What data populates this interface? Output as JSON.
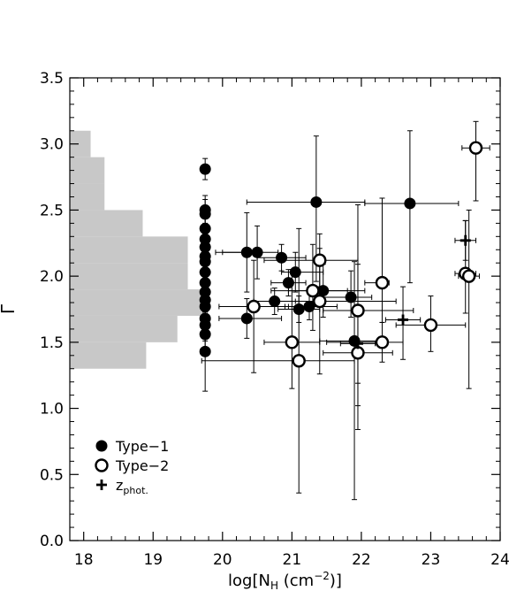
{
  "chart_data": {
    "type": "scatter",
    "xlabel": "log[N_H (cm^-2)]",
    "ylabel": "Γ",
    "xlim": [
      17.8,
      24.0
    ],
    "ylim": [
      0.0,
      3.5
    ],
    "xticks": [
      "18",
      "19",
      "20",
      "21",
      "22",
      "23",
      "24"
    ],
    "yticks": [
      "0.0",
      "0.5",
      "1.0",
      "1.5",
      "2.0",
      "2.5",
      "3.0",
      "3.5"
    ],
    "grid": false,
    "legend_position": "bottom-left",
    "legend": [
      {
        "label": "Type−1",
        "marker": "filled-circle"
      },
      {
        "label": "Type−2",
        "marker": "open-circle"
      },
      {
        "label": "z_phot.",
        "marker": "plus"
      }
    ],
    "histogram": {
      "color": "#c8c8c8",
      "bins": [
        {
          "y0": 1.3,
          "y1": 1.5,
          "x": 18.9
        },
        {
          "y0": 1.5,
          "y1": 1.7,
          "x": 19.35
        },
        {
          "y0": 1.7,
          "y1": 1.9,
          "x": 19.75
        },
        {
          "y0": 1.9,
          "y1": 2.1,
          "x": 19.5
        },
        {
          "y0": 2.1,
          "y1": 2.3,
          "x": 19.5
        },
        {
          "y0": 2.3,
          "y1": 2.5,
          "x": 18.85
        },
        {
          "y0": 2.5,
          "y1": 2.7,
          "x": 18.3
        },
        {
          "y0": 2.7,
          "y1": 2.9,
          "x": 18.3
        },
        {
          "y0": 2.9,
          "y1": 3.1,
          "x": 18.1
        }
      ]
    },
    "series": [
      {
        "name": "Type−1",
        "marker": "filled-circle",
        "points": [
          {
            "x": 19.75,
            "y": 2.81,
            "yerr": [
              0.08,
              0.08
            ]
          },
          {
            "x": 19.75,
            "y": 2.5,
            "yerr": [
              0.12,
              0.11
            ]
          },
          {
            "x": 19.75,
            "y": 2.47,
            "yerr": [
              0.14,
              0.11
            ]
          },
          {
            "x": 19.75,
            "y": 2.36,
            "yerr": [
              0.12,
              0.1
            ]
          },
          {
            "x": 19.75,
            "y": 2.28,
            "yerr": [
              0.11,
              0.12
            ]
          },
          {
            "x": 19.75,
            "y": 2.22,
            "yerr": [
              0.13,
              0.1
            ]
          },
          {
            "x": 19.75,
            "y": 2.15,
            "yerr": [
              0.12,
              0.1
            ]
          },
          {
            "x": 19.75,
            "y": 2.11,
            "yerr": [
              0.1,
              0.1
            ]
          },
          {
            "x": 19.75,
            "y": 2.03,
            "yerr": [
              0.12,
              0.1
            ]
          },
          {
            "x": 19.75,
            "y": 1.95,
            "yerr": [
              0.1,
              0.1
            ]
          },
          {
            "x": 19.75,
            "y": 1.88,
            "yerr": [
              0.1,
              0.12
            ]
          },
          {
            "x": 19.75,
            "y": 1.82,
            "yerr": [
              0.1,
              0.1
            ]
          },
          {
            "x": 19.75,
            "y": 1.77,
            "yerr": [
              0.11,
              0.1
            ]
          },
          {
            "x": 19.75,
            "y": 1.68,
            "yerr": [
              0.12,
              0.1
            ]
          },
          {
            "x": 19.75,
            "y": 1.63,
            "yerr": [
              0.12,
              0.1
            ]
          },
          {
            "x": 19.75,
            "y": 1.56,
            "yerr": [
              0.15,
              0.15
            ]
          },
          {
            "x": 19.75,
            "y": 1.43,
            "yerr": [
              0.3,
              0.3
            ]
          },
          {
            "x": 20.35,
            "y": 2.18,
            "xerr": [
              0.35,
              0.15
            ],
            "yerr": [
              0.3,
              0.3
            ]
          },
          {
            "x": 20.5,
            "y": 2.18,
            "xerr": [
              0.6,
              0.3
            ],
            "yerr": [
              0.2,
              0.2
            ]
          },
          {
            "x": 20.35,
            "y": 1.68,
            "xerr": [
              0.4,
              0.5
            ],
            "yerr": [
              0.15,
              0.15
            ]
          },
          {
            "x": 20.75,
            "y": 1.81,
            "xerr": [
              0.3,
              0.3
            ],
            "yerr": [
              0.1,
              0.1
            ]
          },
          {
            "x": 20.85,
            "y": 2.14,
            "xerr": [
              0.35,
              0.35
            ],
            "yerr": [
              0.1,
              0.1
            ]
          },
          {
            "x": 20.95,
            "y": 1.95,
            "xerr": [
              0.25,
              0.25
            ],
            "yerr": [
              0.1,
              0.1
            ]
          },
          {
            "x": 21.05,
            "y": 2.03,
            "xerr": [
              0.2,
              0.4
            ],
            "yerr": [
              0.15,
              0.15
            ]
          },
          {
            "x": 21.1,
            "y": 1.75,
            "xerr": [
              0.3,
              0.3
            ],
            "yerr": [
              0.1,
              0.1
            ]
          },
          {
            "x": 21.25,
            "y": 1.77,
            "xerr": [
              0.35,
              0.4
            ],
            "yerr": [
              0.1,
              0.1
            ]
          },
          {
            "x": 21.35,
            "y": 2.56,
            "xerr": [
              1.0,
              0.7
            ],
            "yerr": [
              0.6,
              0.5
            ]
          },
          {
            "x": 21.45,
            "y": 1.89,
            "xerr": [
              0.5,
              0.6
            ],
            "yerr": [
              0.2,
              0.2
            ]
          },
          {
            "x": 21.85,
            "y": 1.84,
            "xerr": [
              0.4,
              0.3
            ],
            "yerr": [
              0.15,
              0.2
            ]
          },
          {
            "x": 21.9,
            "y": 1.51,
            "xerr": [
              0.5,
              0.4
            ],
            "yerr": [
              1.2,
              0.6
            ]
          },
          {
            "x": 22.7,
            "y": 2.55,
            "xerr": [
              0.65,
              0.7
            ],
            "yerr": [
              0.6,
              0.55
            ]
          }
        ]
      },
      {
        "name": "Type−2",
        "marker": "open-circle",
        "points": [
          {
            "x": 20.45,
            "y": 1.77,
            "xerr": [
              0.5,
              0.5
            ],
            "yerr": [
              0.5,
              0.35
            ]
          },
          {
            "x": 21.0,
            "y": 1.5,
            "xerr": [
              0.4,
              0.4
            ],
            "yerr": [
              0.35,
              0.55
            ]
          },
          {
            "x": 21.1,
            "y": 1.36,
            "xerr": [
              1.4,
              0.8
            ],
            "yerr": [
              1.0,
              1.0
            ]
          },
          {
            "x": 21.3,
            "y": 1.89,
            "xerr": [
              0.6,
              0.5
            ],
            "yerr": [
              0.3,
              0.35
            ]
          },
          {
            "x": 21.4,
            "y": 2.12,
            "xerr": [
              0.8,
              0.55
            ],
            "yerr": [
              0.2,
              0.2
            ]
          },
          {
            "x": 21.4,
            "y": 1.81,
            "xerr": [
              0.7,
              1.1
            ],
            "yerr": [
              0.55,
              0.4
            ]
          },
          {
            "x": 21.95,
            "y": 1.74,
            "xerr": [
              0.5,
              0.8
            ],
            "yerr": [
              0.55,
              0.8
            ]
          },
          {
            "x": 21.95,
            "y": 1.42,
            "xerr": [
              0.5,
              0.5
            ],
            "yerr": [
              0.4,
              0.35
            ]
          },
          {
            "x": 22.3,
            "y": 1.95,
            "xerr": [
              0.25,
              0.1
            ],
            "yerr": [
              0.3,
              0.64
            ]
          },
          {
            "x": 22.3,
            "y": 1.5,
            "xerr": [
              0.8,
              0.3
            ],
            "yerr": [
              0.15,
              0.15
            ]
          },
          {
            "x": 23.0,
            "y": 1.63,
            "xerr": [
              0.5,
              0.5
            ],
            "yerr": [
              0.2,
              0.22
            ]
          },
          {
            "x": 23.5,
            "y": 2.02,
            "xerr": [
              0.15,
              0.15
            ],
            "yerr": [
              0.3,
              0.4
            ]
          },
          {
            "x": 23.55,
            "y": 2.0,
            "xerr": [
              0.15,
              0.15
            ],
            "yerr": [
              0.85,
              0.5
            ]
          },
          {
            "x": 23.65,
            "y": 2.97,
            "xerr": [
              0.2,
              0.2
            ],
            "yerr": [
              0.4,
              0.2
            ]
          }
        ]
      },
      {
        "name": "z_phot.",
        "marker": "plus",
        "points": [
          {
            "x": 21.95,
            "y": 1.49,
            "xerr": [
              0.25,
              0.25
            ],
            "yerr": [
              0.65,
              0.6
            ]
          },
          {
            "x": 22.6,
            "y": 1.67,
            "xerr": [
              0.25,
              0.25
            ],
            "yerr": [
              0.3,
              0.25
            ]
          },
          {
            "x": 23.5,
            "y": 2.27,
            "xerr": [
              0.15,
              0.15
            ],
            "yerr": [
              0.15,
              0.15
            ]
          }
        ]
      }
    ]
  }
}
